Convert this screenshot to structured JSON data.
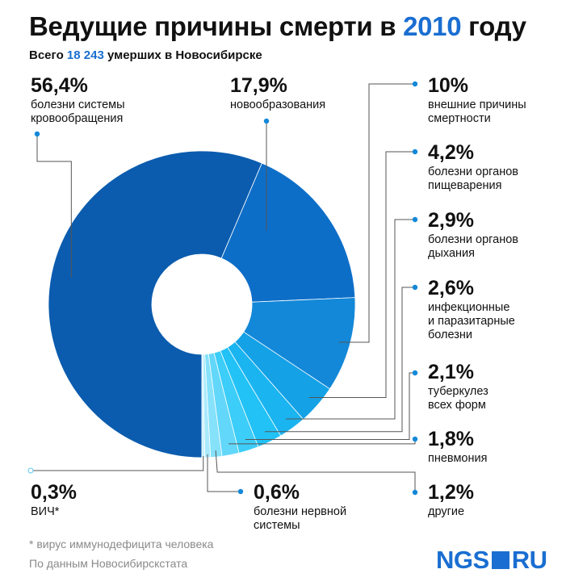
{
  "header": {
    "title_prefix": "Ведущие причины смерти в ",
    "title_year": "2010",
    "title_suffix": " году",
    "subtitle_prefix": "Всего ",
    "subtitle_number": "18 243",
    "subtitle_suffix": " умерших в Новосибирске"
  },
  "chart_data": {
    "type": "pie",
    "title": "Ведущие причины смерти в 2010 году",
    "unit": "%",
    "slices": [
      {
        "pct": "56,4%",
        "label": "болезни системы кровообращения",
        "line1": "болезни системы",
        "line2": "кровообращения",
        "line3": "",
        "value": 56.4,
        "color": "#0b5cae"
      },
      {
        "pct": "17,9%",
        "label": "новообразования",
        "line1": "новообразования",
        "line2": "",
        "line3": "",
        "value": 17.9,
        "color": "#0d6ec8"
      },
      {
        "pct": "10%",
        "label": "внешние причины смертности",
        "line1": "внешние причины",
        "line2": "смертности",
        "line3": "",
        "value": 10.0,
        "color": "#1388d8"
      },
      {
        "pct": "4,2%",
        "label": "болезни органов пищеварения",
        "line1": "болезни органов",
        "line2": "пищеварения",
        "line3": "",
        "value": 4.2,
        "color": "#14a1e6"
      },
      {
        "pct": "2,9%",
        "label": "болезни органов дыхания",
        "line1": "болезни органов",
        "line2": "дыхания",
        "line3": "",
        "value": 2.9,
        "color": "#1ab4f0"
      },
      {
        "pct": "2,6%",
        "label": "инфекционные и паразитарные болезни",
        "line1": "инфекционные",
        "line2": "и паразитарные",
        "line3": "болезни",
        "value": 2.6,
        "color": "#22c2f6"
      },
      {
        "pct": "2,1%",
        "label": "туберкулез всех форм",
        "line1": "туберкулез",
        "line2": "всех форм",
        "line3": "",
        "value": 2.1,
        "color": "#3ccdf8"
      },
      {
        "pct": "1,8%",
        "label": "пневмония",
        "line1": "пневмония",
        "line2": "",
        "line3": "",
        "value": 1.8,
        "color": "#62d7fa"
      },
      {
        "pct": "1,2%",
        "label": "другие",
        "line1": "другие",
        "line2": "",
        "line3": "",
        "value": 1.2,
        "color": "#86e1fb"
      },
      {
        "pct": "0,6%",
        "label": "болезни нервной системы",
        "line1": "болезни нервной",
        "line2": "системы",
        "line3": "",
        "value": 0.6,
        "color": "#a9eafc"
      },
      {
        "pct": "0,3%",
        "label": "ВИЧ*",
        "line1": "ВИЧ*",
        "line2": "",
        "line3": "",
        "value": 0.3,
        "color": "#c9f2fd"
      }
    ]
  },
  "footer": {
    "footnote": "* вирус иммунодефицита человека",
    "source": "По данным Новосибирскстата",
    "logo_left": "NGS",
    "logo_right": "RU"
  },
  "colors": {
    "accent": "#1a6ed1",
    "leader_line": "#555555",
    "dot": "#1388d8"
  }
}
